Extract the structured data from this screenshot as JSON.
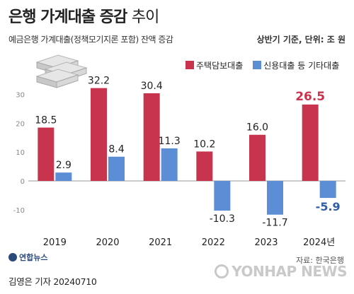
{
  "title": {
    "main": "은행 가계대출 증감",
    "suffix": "추이"
  },
  "subtitle": "예금은행 가계대출(정책모기지론 포함) 잔액 증감",
  "unit_note": "상반기 기준, 단위: 조 원",
  "source": "자료: 한국은행",
  "byline": "김영은 기자  20240710",
  "watermark_left": "연합뉴스",
  "watermark_right": "YONHAP NEWS",
  "colors": {
    "series1": "#c8334d",
    "series2": "#5b8ed4",
    "axis": "#999999"
  },
  "chart_data": {
    "type": "bar",
    "categories": [
      "2019",
      "2020",
      "2021",
      "2022",
      "2023",
      "2024년"
    ],
    "series": [
      {
        "name": "주택담보대출",
        "values": [
          18.5,
          32.2,
          30.4,
          10.2,
          16.0,
          26.5
        ]
      },
      {
        "name": "신용대출 등 기타대출",
        "values": [
          2.9,
          8.4,
          11.3,
          -10.3,
          -11.7,
          -5.9
        ]
      }
    ],
    "value_labels": {
      "series1": [
        "18.5",
        "32.2",
        "30.4",
        "10.2",
        "16.0",
        "26.5"
      ],
      "series2": [
        "2.9",
        "8.4",
        "11.3",
        "-10.3",
        "-11.7",
        "-5.9"
      ]
    },
    "yticks": [
      30,
      20,
      10,
      0,
      -10
    ],
    "ylim": [
      -14,
      36
    ],
    "legend_position": "top-right",
    "grid": false
  }
}
